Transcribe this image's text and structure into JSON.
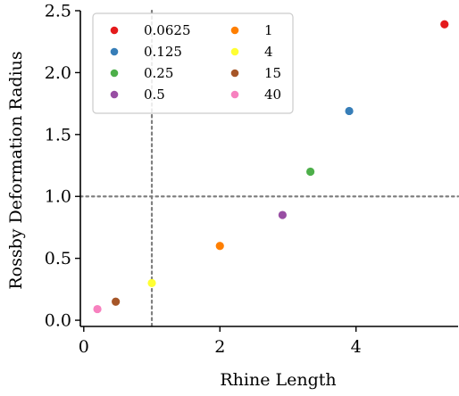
{
  "chart_data": {
    "type": "scatter",
    "xlabel": "Rhine Length",
    "ylabel": "Rossby Deformation Radius",
    "xlim": [
      -0.05,
      5.5
    ],
    "ylim": [
      -0.05,
      2.5
    ],
    "xticks": [
      0,
      2,
      4
    ],
    "xtick_labels": [
      "0",
      "2",
      "4"
    ],
    "yticks": [
      0.0,
      0.5,
      1.0,
      1.5,
      2.0,
      2.5
    ],
    "ytick_labels": [
      "0.0",
      "0.5",
      "1.0",
      "1.5",
      "2.0",
      "2.5"
    ],
    "reference_lines": {
      "x": 1,
      "y": 1,
      "style": "dotted",
      "color": "#808080"
    },
    "grid": false,
    "legend": {
      "placement": "top-left",
      "columns": 2
    },
    "series": [
      {
        "name": "0.0625",
        "color": "#e41a1c",
        "x": 5.3,
        "y": 2.39
      },
      {
        "name": "0.125",
        "color": "#377eb8",
        "x": 3.9,
        "y": 1.69
      },
      {
        "name": "0.25",
        "color": "#4daf4a",
        "x": 3.33,
        "y": 1.2
      },
      {
        "name": "0.5",
        "color": "#984ea3",
        "x": 2.92,
        "y": 0.85
      },
      {
        "name": "1",
        "color": "#ff7f00",
        "x": 2.0,
        "y": 0.6
      },
      {
        "name": "4",
        "color": "#ffff33",
        "x": 1.0,
        "y": 0.3
      },
      {
        "name": "15",
        "color": "#a65628",
        "x": 0.47,
        "y": 0.15
      },
      {
        "name": "40",
        "color": "#f781bf",
        "x": 0.2,
        "y": 0.09
      }
    ]
  }
}
